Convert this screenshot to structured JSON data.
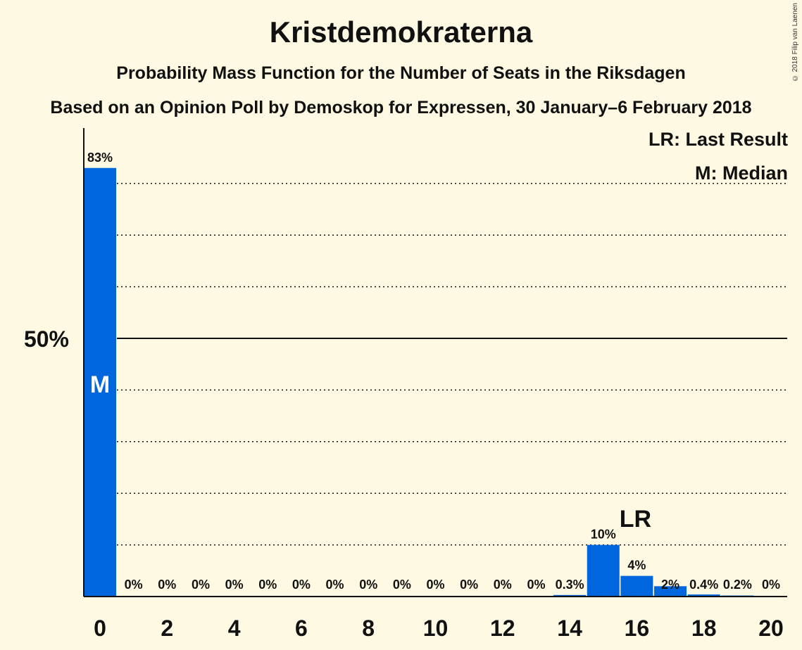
{
  "chart_data": {
    "type": "bar",
    "title": "Kristdemokraterna",
    "subtitle": "Probability Mass Function for the Number of Seats in the Riksdagen",
    "subtitle2": "Based on an Opinion Poll by Demoskop for Expressen, 30 January–6 February 2018",
    "copyright": "© 2018 Filip van Laenen",
    "legend": {
      "last_result": "LR: Last Result",
      "median": "M: Median",
      "placement": "top-right"
    },
    "categories": [
      0,
      1,
      2,
      3,
      4,
      5,
      6,
      7,
      8,
      9,
      10,
      11,
      12,
      13,
      14,
      15,
      16,
      17,
      18,
      19,
      20
    ],
    "values": [
      83,
      0,
      0,
      0,
      0,
      0,
      0,
      0,
      0,
      0,
      0,
      0,
      0,
      0,
      0.3,
      10,
      4,
      2,
      0.4,
      0.2,
      0
    ],
    "value_labels": [
      "83%",
      "0%",
      "0%",
      "0%",
      "0%",
      "0%",
      "0%",
      "0%",
      "0%",
      "0%",
      "0%",
      "0%",
      "0%",
      "0%",
      "0.3%",
      "10%",
      "4%",
      "2%",
      "0.4%",
      "0.2%",
      "0%"
    ],
    "x_tick_labels": [
      "0",
      "2",
      "4",
      "6",
      "8",
      "10",
      "12",
      "14",
      "16",
      "18",
      "20"
    ],
    "y_tick_label": "50%",
    "ylim": [
      0,
      90
    ],
    "gridlines": [
      10,
      20,
      30,
      40,
      60,
      70,
      80
    ],
    "major_gridline": 50,
    "median_seat": 0,
    "median_marker": "M",
    "last_result_seat": 16,
    "last_result_marker": "LR",
    "bar_color": "#0066dd",
    "background_color": "#fdf9e2"
  }
}
